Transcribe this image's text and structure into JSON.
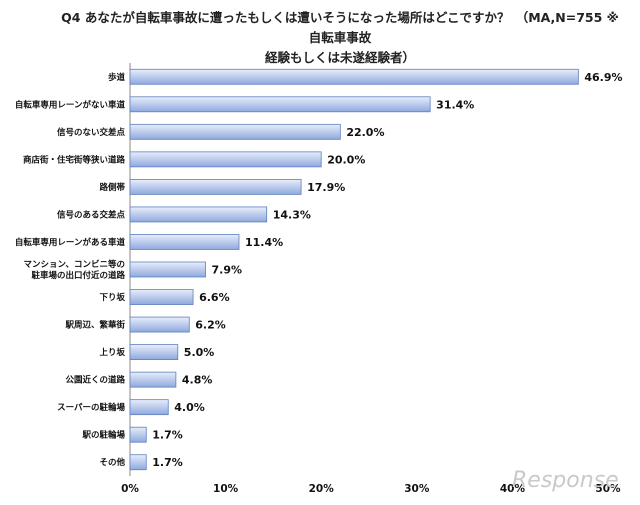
{
  "chart_data": {
    "type": "bar",
    "orientation": "horizontal",
    "title_line1": "Q4 あなたが自転車事故に遭ったもしくは遭いそうになった場所はどこですか？　（MA,N=755 ※自転車事故",
    "title_line2": "経験もしくは未遂経験者）",
    "categories": [
      [
        "歩道"
      ],
      [
        "自転車専用レーンがない車道"
      ],
      [
        "信号のない交差点"
      ],
      [
        "商店街・住宅街等狭い道路"
      ],
      [
        "路側帯"
      ],
      [
        "信号のある交差点"
      ],
      [
        "自転車専用レーンがある車道"
      ],
      [
        "マンション、コンビニ等の",
        "駐車場の出口付近の道路"
      ],
      [
        "下り坂"
      ],
      [
        "駅周辺、繁華街"
      ],
      [
        "上り坂"
      ],
      [
        "公園近くの道路"
      ],
      [
        "スーパーの駐輪場"
      ],
      [
        "駅の駐輪場"
      ],
      [
        "その他"
      ]
    ],
    "values": [
      46.9,
      31.4,
      22.0,
      20.0,
      17.9,
      14.3,
      11.4,
      7.9,
      6.6,
      6.2,
      5.0,
      4.8,
      4.0,
      1.7,
      1.7
    ],
    "data_labels": [
      "46.9%",
      "31.4%",
      "22.0%",
      "20.0%",
      "17.9%",
      "14.3%",
      "11.4%",
      "7.9%",
      "6.6%",
      "6.2%",
      "5.0%",
      "4.8%",
      "4.0%",
      "1.7%",
      "1.7%"
    ],
    "x_ticks": [
      "0%",
      "10%",
      "20%",
      "30%",
      "40%",
      "50%"
    ],
    "xlim": [
      0,
      50
    ],
    "grid": false,
    "legend": "none",
    "bar_color_light": "#e8eefb",
    "bar_color_dark": "#8fa9dd",
    "bar_border": "#5f7fbf"
  },
  "watermark": "Response"
}
